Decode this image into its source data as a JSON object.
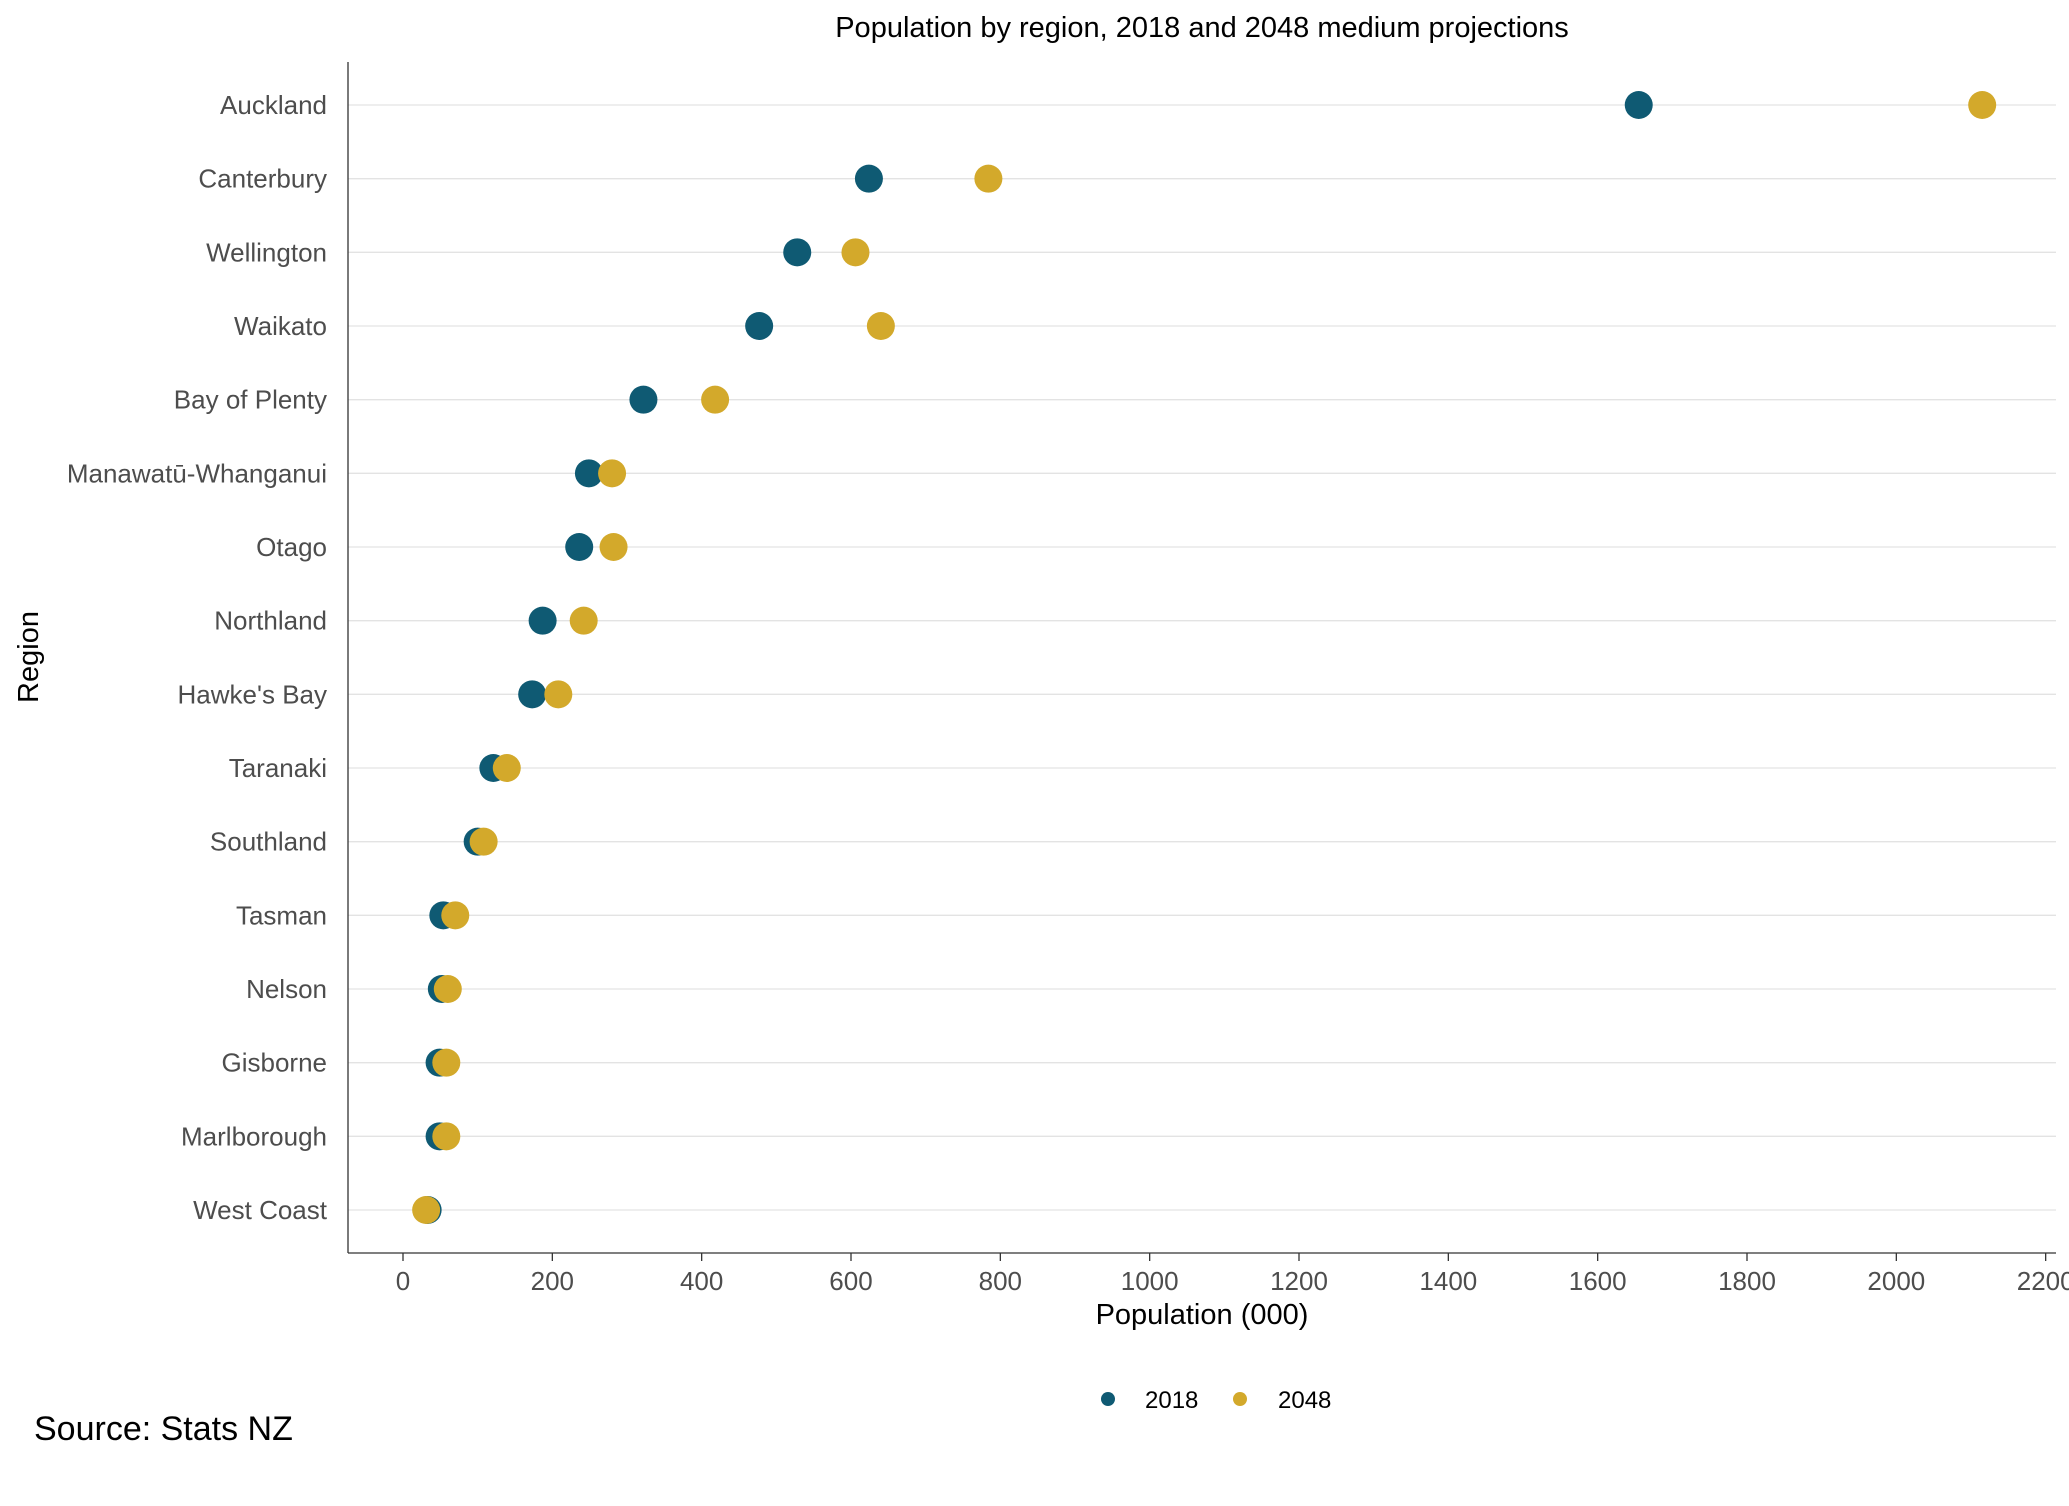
{
  "chart_data": {
    "type": "scatter",
    "title": "Population by region, 2018 and 2048 medium projections",
    "xlabel": "Population (000)",
    "ylabel": "Region",
    "xlim": [
      -75,
      2215
    ],
    "x_ticks": [
      0,
      200,
      400,
      600,
      800,
      1000,
      1200,
      1400,
      1600,
      1800,
      2000,
      2200
    ],
    "categories": [
      "Auckland",
      "Canterbury",
      "Wellington",
      "Waikato",
      "Bay of Plenty",
      "Manawatū-Whanganui",
      "Otago",
      "Northland",
      "Hawke's Bay",
      "Taranaki",
      "Southland",
      "Tasman",
      "Nelson",
      "Gisborne",
      "Marlborough",
      "West Coast"
    ],
    "series": [
      {
        "name": "2018",
        "color": "#0f5a73",
        "values": [
          1655,
          624,
          528,
          477,
          322,
          249,
          236,
          187,
          173,
          121,
          100,
          54,
          52,
          49,
          49,
          33
        ]
      },
      {
        "name": "2048",
        "color": "#d3a92b",
        "values": [
          2115,
          784,
          606,
          640,
          418,
          280,
          282,
          242,
          208,
          139,
          108,
          70,
          60,
          58,
          58,
          31
        ]
      }
    ],
    "grid": "horizontal",
    "legend_position": "bottom",
    "source": "Source: Stats NZ"
  }
}
